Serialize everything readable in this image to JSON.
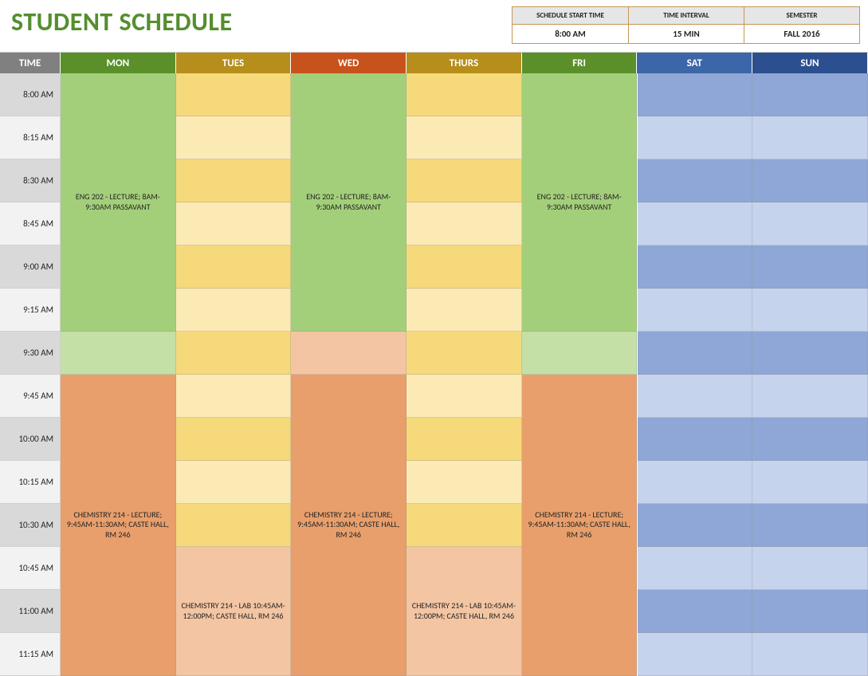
{
  "title": "STUDENT SCHEDULE",
  "info": {
    "cols": [
      {
        "label": "SCHEDULE START TIME",
        "value": "8:00 AM"
      },
      {
        "label": "TIME INTERVAL",
        "value": "15 MIN"
      },
      {
        "label": "SEMESTER",
        "value": "FALL 2016"
      }
    ]
  },
  "colors": {
    "title": "#558e2e",
    "time_header_bg": "#808080",
    "day_headers": {
      "MON": "#5a8f29",
      "TUES": "#b68e1b",
      "WED": "#c7521c",
      "THURS": "#b68e1b",
      "FRI": "#5a8f29",
      "SAT": "#3d66a8",
      "SUN": "#2c4f8f"
    },
    "green_dark": "#a4cf7a",
    "green_light": "#c4e0a6",
    "yellow_dark": "#f5d97a",
    "yellow_light": "#fbeab3",
    "orange_dark": "#e89f6b",
    "orange_light": "#f3c5a3",
    "blue_dark": "#8ea7d6",
    "blue_light": "#c6d3ec",
    "time_alt_a": "#d9d9d9",
    "time_alt_b": "#f2f2f2"
  },
  "days": [
    "MON",
    "TUES",
    "WED",
    "THURS",
    "FRI",
    "SAT",
    "SUN"
  ],
  "time_header": "TIME",
  "times": [
    "8:00 AM",
    "8:15 AM",
    "8:30 AM",
    "8:45 AM",
    "9:00 AM",
    "9:15 AM",
    "9:30 AM",
    "9:45 AM",
    "10:00 AM",
    "10:15 AM",
    "10:30 AM",
    "10:45 AM",
    "11:00 AM",
    "11:15 AM"
  ],
  "events": {
    "eng": "ENG 202 - LECTURE; 8AM-9:30AM PASSAVANT",
    "chem_lec": "CHEMISTRY 214 - LECTURE; 9:45AM-11:30AM; CASTE HALL, RM 246",
    "chem_lab": "CHEMISTRY 214 - LAB 10:45AM-12:00PM; CASTE HALL, RM 246"
  },
  "grid": [
    {
      "time_idx": 0,
      "cells": [
        {
          "day": "MON",
          "span": 6,
          "bg": "green_dark",
          "text": "events.eng"
        },
        {
          "day": "TUES",
          "bg": "yellow_dark"
        },
        {
          "day": "WED",
          "span": 6,
          "bg": "green_dark",
          "text": "events.eng"
        },
        {
          "day": "THURS",
          "bg": "yellow_dark"
        },
        {
          "day": "FRI",
          "span": 6,
          "bg": "green_dark",
          "text": "events.eng"
        },
        {
          "day": "SAT",
          "bg": "blue_dark"
        },
        {
          "day": "SUN",
          "bg": "blue_dark"
        }
      ]
    },
    {
      "time_idx": 1,
      "cells": [
        {
          "day": "TUES",
          "bg": "yellow_light"
        },
        {
          "day": "THURS",
          "bg": "yellow_light"
        },
        {
          "day": "SAT",
          "bg": "blue_light"
        },
        {
          "day": "SUN",
          "bg": "blue_light"
        }
      ]
    },
    {
      "time_idx": 2,
      "cells": [
        {
          "day": "TUES",
          "bg": "yellow_dark"
        },
        {
          "day": "THURS",
          "bg": "yellow_dark"
        },
        {
          "day": "SAT",
          "bg": "blue_dark"
        },
        {
          "day": "SUN",
          "bg": "blue_dark"
        }
      ]
    },
    {
      "time_idx": 3,
      "cells": [
        {
          "day": "TUES",
          "bg": "yellow_light"
        },
        {
          "day": "THURS",
          "bg": "yellow_light"
        },
        {
          "day": "SAT",
          "bg": "blue_light"
        },
        {
          "day": "SUN",
          "bg": "blue_light"
        }
      ]
    },
    {
      "time_idx": 4,
      "cells": [
        {
          "day": "TUES",
          "bg": "yellow_dark"
        },
        {
          "day": "THURS",
          "bg": "yellow_dark"
        },
        {
          "day": "SAT",
          "bg": "blue_dark"
        },
        {
          "day": "SUN",
          "bg": "blue_dark"
        }
      ]
    },
    {
      "time_idx": 5,
      "cells": [
        {
          "day": "TUES",
          "bg": "yellow_light"
        },
        {
          "day": "THURS",
          "bg": "yellow_light"
        },
        {
          "day": "SAT",
          "bg": "blue_light"
        },
        {
          "day": "SUN",
          "bg": "blue_light"
        }
      ]
    },
    {
      "time_idx": 6,
      "cells": [
        {
          "day": "MON",
          "bg": "green_light"
        },
        {
          "day": "TUES",
          "bg": "yellow_dark"
        },
        {
          "day": "WED",
          "bg": "orange_light"
        },
        {
          "day": "THURS",
          "bg": "yellow_dark"
        },
        {
          "day": "FRI",
          "bg": "green_light"
        },
        {
          "day": "SAT",
          "bg": "blue_dark"
        },
        {
          "day": "SUN",
          "bg": "blue_dark"
        }
      ]
    },
    {
      "time_idx": 7,
      "cells": [
        {
          "day": "MON",
          "span": 7,
          "bg": "orange_dark",
          "text": "events.chem_lec"
        },
        {
          "day": "TUES",
          "bg": "yellow_light"
        },
        {
          "day": "WED",
          "span": 7,
          "bg": "orange_dark",
          "text": "events.chem_lec"
        },
        {
          "day": "THURS",
          "bg": "yellow_light"
        },
        {
          "day": "FRI",
          "span": 7,
          "bg": "orange_dark",
          "text": "events.chem_lec"
        },
        {
          "day": "SAT",
          "bg": "blue_light"
        },
        {
          "day": "SUN",
          "bg": "blue_light"
        }
      ]
    },
    {
      "time_idx": 8,
      "cells": [
        {
          "day": "TUES",
          "bg": "yellow_dark"
        },
        {
          "day": "THURS",
          "bg": "yellow_dark"
        },
        {
          "day": "SAT",
          "bg": "blue_dark"
        },
        {
          "day": "SUN",
          "bg": "blue_dark"
        }
      ]
    },
    {
      "time_idx": 9,
      "cells": [
        {
          "day": "TUES",
          "bg": "yellow_light"
        },
        {
          "day": "THURS",
          "bg": "yellow_light"
        },
        {
          "day": "SAT",
          "bg": "blue_light"
        },
        {
          "day": "SUN",
          "bg": "blue_light"
        }
      ]
    },
    {
      "time_idx": 10,
      "cells": [
        {
          "day": "TUES",
          "bg": "yellow_dark"
        },
        {
          "day": "THURS",
          "bg": "yellow_dark"
        },
        {
          "day": "SAT",
          "bg": "blue_dark"
        },
        {
          "day": "SUN",
          "bg": "blue_dark"
        }
      ]
    },
    {
      "time_idx": 11,
      "cells": [
        {
          "day": "TUES",
          "span": 3,
          "bg": "orange_light",
          "text": "events.chem_lab"
        },
        {
          "day": "THURS",
          "span": 3,
          "bg": "orange_light",
          "text": "events.chem_lab"
        },
        {
          "day": "SAT",
          "bg": "blue_light"
        },
        {
          "day": "SUN",
          "bg": "blue_light"
        }
      ]
    },
    {
      "time_idx": 12,
      "cells": [
        {
          "day": "SAT",
          "bg": "blue_dark"
        },
        {
          "day": "SUN",
          "bg": "blue_dark"
        }
      ]
    },
    {
      "time_idx": 13,
      "cells": [
        {
          "day": "SAT",
          "bg": "blue_light"
        },
        {
          "day": "SUN",
          "bg": "blue_light"
        }
      ]
    }
  ]
}
